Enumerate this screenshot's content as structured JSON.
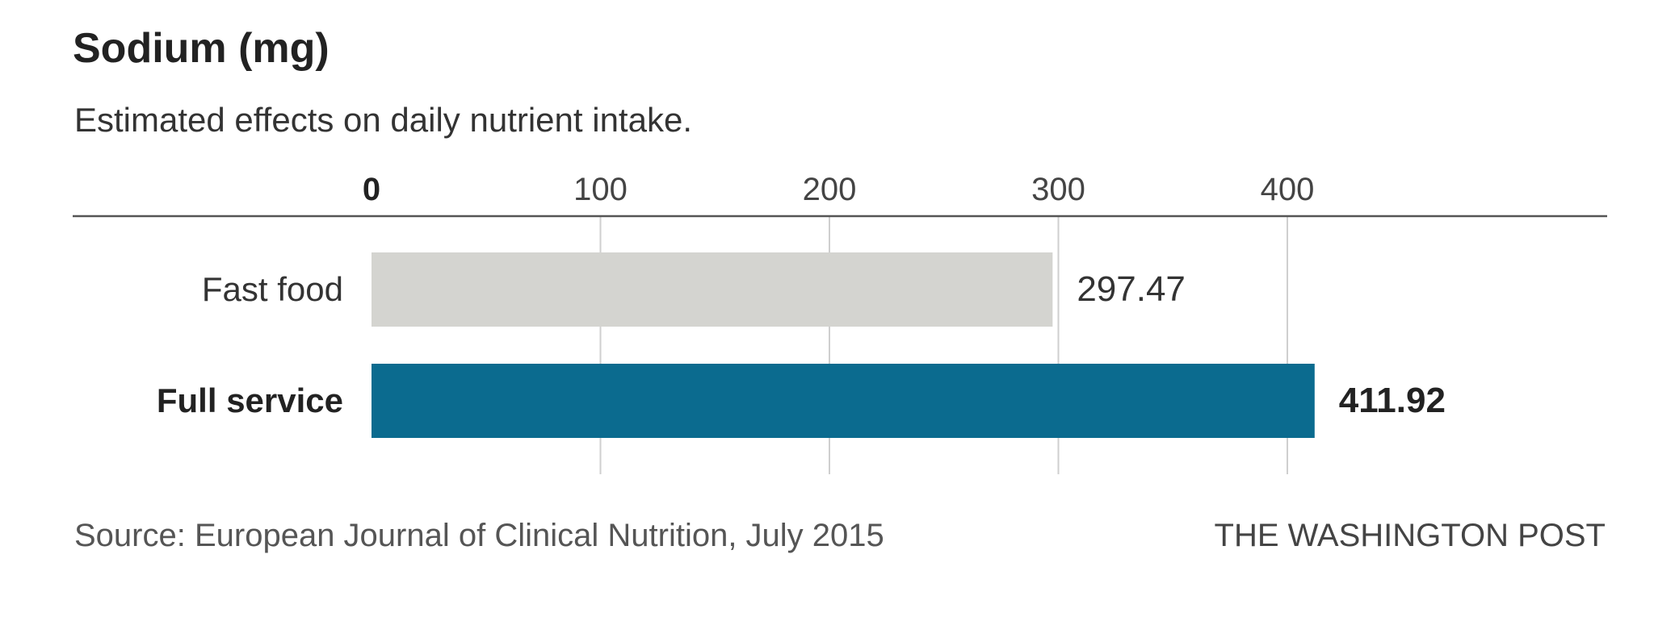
{
  "header": {
    "title": "Sodium (mg)",
    "subtitle": "Estimated effects on daily nutrient intake."
  },
  "footer": {
    "source": "Source: European Journal of Clinical Nutrition, July 2015",
    "credit": "THE WASHINGTON POST"
  },
  "chart_data": {
    "type": "bar",
    "orientation": "horizontal",
    "title": "Sodium (mg)",
    "subtitle": "Estimated effects on daily nutrient intake.",
    "categories": [
      "Fast food",
      "Full service"
    ],
    "values": [
      297.47,
      411.92
    ],
    "value_labels": [
      "297.47",
      "411.92"
    ],
    "xlim": [
      0,
      450
    ],
    "x_ticks": [
      0,
      100,
      200,
      300,
      400
    ],
    "grid": true,
    "highlight_index": 1,
    "colors": {
      "default_bar": "#d4d4d0",
      "highlight_bar": "#0b6b8f",
      "gridline": "#cfcfcf",
      "axis_line": "#555555",
      "text": "#222222"
    }
  }
}
